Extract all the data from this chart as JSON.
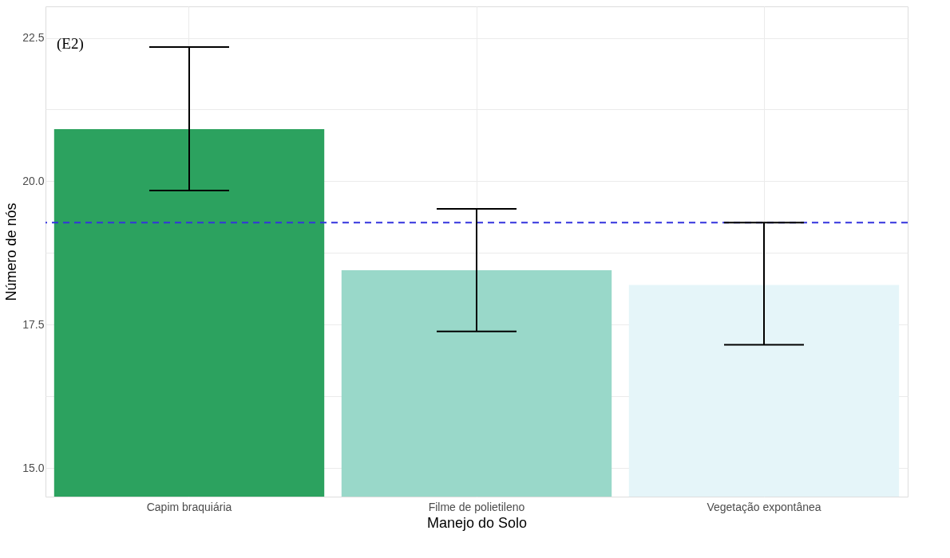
{
  "chart_data": {
    "type": "bar",
    "categories": [
      "Capim braquiária",
      "Filme de polietileno",
      "Vegetação expontânea"
    ],
    "values": [
      20.91,
      18.45,
      18.19
    ],
    "colors": [
      "#2ca25f",
      "#99d8c9",
      "#e5f5f9"
    ],
    "errors": [
      [
        19.84,
        22.34
      ],
      [
        17.38,
        19.52
      ],
      [
        17.15,
        19.28
      ]
    ],
    "xlabel": "Manejo do Solo",
    "ylabel": "Número de nós",
    "ylim": [
      14.5,
      23.05
    ],
    "yticks": [
      {
        "value": 15,
        "label": "15.0"
      },
      {
        "value": 16.25,
        "label": null
      },
      {
        "value": 17.5,
        "label": "17.5"
      },
      {
        "value": 18.75,
        "label": null
      },
      {
        "value": 20,
        "label": "20.0"
      },
      {
        "value": 21.25,
        "label": null
      },
      {
        "value": 22.5,
        "label": "22.5"
      }
    ],
    "ref_lines": [
      {
        "axis": "y",
        "value": 19.28,
        "color": "#3333dd",
        "line_style": "dashed"
      }
    ],
    "annotations": [
      "(E2)"
    ],
    "grid": true
  }
}
